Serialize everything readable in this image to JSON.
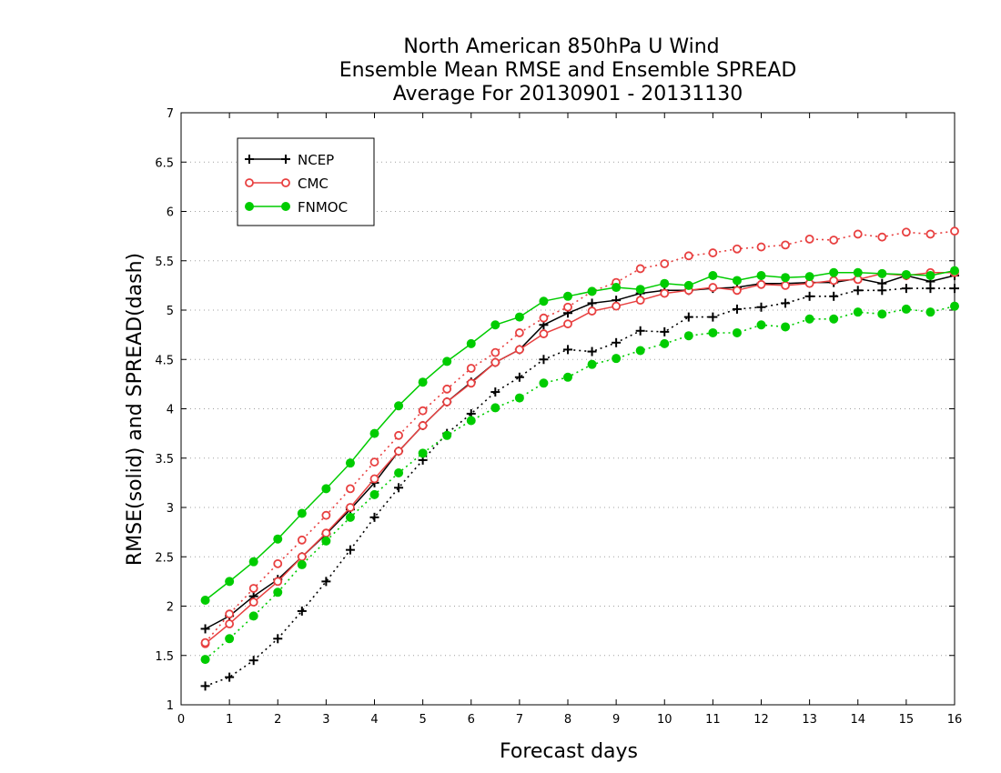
{
  "chart_data": {
    "type": "line",
    "title": [
      "North American 850hPa U Wind",
      "Ensemble Mean RMSE and Ensemble SPREAD",
      "Average For 20130901 - 20131130"
    ],
    "xlabel": "Forecast days",
    "ylabel": "RMSE(solid)  and  SPREAD(dash)",
    "xlim": [
      0,
      16
    ],
    "ylim": [
      1,
      7
    ],
    "xticks": [
      0,
      1,
      2,
      3,
      4,
      5,
      6,
      7,
      8,
      9,
      10,
      11,
      12,
      13,
      14,
      15,
      16
    ],
    "xtick_labels": [
      "0",
      "1",
      "2",
      "3",
      "4",
      "5",
      "6",
      "7",
      "8",
      "9",
      "10",
      "11",
      "12",
      "13",
      "14",
      "15",
      "16"
    ],
    "yticks": [
      1,
      1.5,
      2,
      2.5,
      3,
      3.5,
      4,
      4.5,
      5,
      5.5,
      6,
      6.5,
      7
    ],
    "ytick_labels": [
      "1",
      "1.5",
      "2",
      "2.5",
      "3",
      "3.5",
      "4",
      "4.5",
      "5",
      "5.5",
      "6",
      "6.5",
      "7"
    ],
    "grid": "horizontal-dotted",
    "legend_position": "top-left",
    "x": [
      0.5,
      1,
      1.5,
      2,
      2.5,
      3,
      3.5,
      4,
      4.5,
      5,
      5.5,
      6,
      6.5,
      7,
      7.5,
      8,
      8.5,
      9,
      9.5,
      10,
      10.5,
      11,
      11.5,
      12,
      12.5,
      13,
      13.5,
      14,
      14.5,
      15,
      15.5,
      16
    ],
    "series": [
      {
        "name": "NCEP",
        "metric": "RMSE",
        "style": "solid",
        "marker": "plus",
        "color": "#000000",
        "values": [
          1.77,
          1.9,
          2.1,
          2.27,
          2.5,
          2.73,
          2.98,
          3.25,
          3.57,
          3.83,
          4.07,
          4.27,
          4.47,
          4.6,
          4.85,
          4.97,
          5.07,
          5.1,
          5.17,
          5.2,
          5.2,
          5.22,
          5.23,
          5.27,
          5.27,
          5.28,
          5.28,
          5.32,
          5.27,
          5.35,
          5.29,
          5.35
        ]
      },
      {
        "name": "NCEP",
        "metric": "SPREAD",
        "style": "dash",
        "marker": "plus",
        "color": "#000000",
        "values": [
          1.19,
          1.28,
          1.45,
          1.67,
          1.95,
          2.25,
          2.57,
          2.9,
          3.2,
          3.48,
          3.75,
          3.95,
          4.17,
          4.32,
          4.5,
          4.6,
          4.58,
          4.67,
          4.79,
          4.78,
          4.93,
          4.93,
          5.01,
          5.03,
          5.07,
          5.14,
          5.14,
          5.2,
          5.2,
          5.22,
          5.22,
          5.22
        ]
      },
      {
        "name": "CMC",
        "metric": "RMSE",
        "style": "solid",
        "marker": "open-circle",
        "color": "#e84040",
        "values": [
          1.62,
          1.82,
          2.04,
          2.25,
          2.5,
          2.74,
          3.0,
          3.29,
          3.57,
          3.83,
          4.07,
          4.26,
          4.47,
          4.6,
          4.76,
          4.86,
          4.99,
          5.04,
          5.1,
          5.17,
          5.2,
          5.23,
          5.2,
          5.26,
          5.25,
          5.27,
          5.3,
          5.31,
          5.37,
          5.35,
          5.38,
          5.38
        ]
      },
      {
        "name": "CMC",
        "metric": "SPREAD",
        "style": "dash",
        "marker": "open-circle",
        "color": "#e84040",
        "values": [
          1.63,
          1.92,
          2.18,
          2.43,
          2.67,
          2.92,
          3.19,
          3.46,
          3.73,
          3.98,
          4.2,
          4.41,
          4.57,
          4.77,
          4.92,
          5.03,
          5.19,
          5.28,
          5.42,
          5.47,
          5.55,
          5.58,
          5.62,
          5.64,
          5.66,
          5.72,
          5.71,
          5.77,
          5.74,
          5.79,
          5.77,
          5.8
        ]
      },
      {
        "name": "FNMOC",
        "metric": "RMSE",
        "style": "solid",
        "marker": "filled-circle",
        "color": "#00cc00",
        "values": [
          2.06,
          2.25,
          2.45,
          2.68,
          2.94,
          3.19,
          3.45,
          3.75,
          4.03,
          4.27,
          4.48,
          4.66,
          4.85,
          4.93,
          5.09,
          5.14,
          5.19,
          5.23,
          5.21,
          5.27,
          5.25,
          5.35,
          5.3,
          5.35,
          5.33,
          5.34,
          5.38,
          5.38,
          5.37,
          5.36,
          5.35,
          5.4
        ]
      },
      {
        "name": "FNMOC",
        "metric": "SPREAD",
        "style": "dash",
        "marker": "filled-circle",
        "color": "#00cc00",
        "values": [
          1.46,
          1.67,
          1.9,
          2.14,
          2.42,
          2.66,
          2.9,
          3.13,
          3.35,
          3.55,
          3.73,
          3.88,
          4.01,
          4.11,
          4.26,
          4.32,
          4.45,
          4.51,
          4.59,
          4.66,
          4.74,
          4.77,
          4.77,
          4.85,
          4.83,
          4.91,
          4.91,
          4.98,
          4.96,
          5.01,
          4.98,
          5.04
        ]
      }
    ],
    "legend": [
      {
        "name": "NCEP",
        "marker": "plus",
        "color": "#000000"
      },
      {
        "name": "CMC",
        "marker": "open-circle",
        "color": "#e84040"
      },
      {
        "name": "FNMOC",
        "marker": "filled-circle",
        "color": "#00cc00"
      }
    ]
  }
}
